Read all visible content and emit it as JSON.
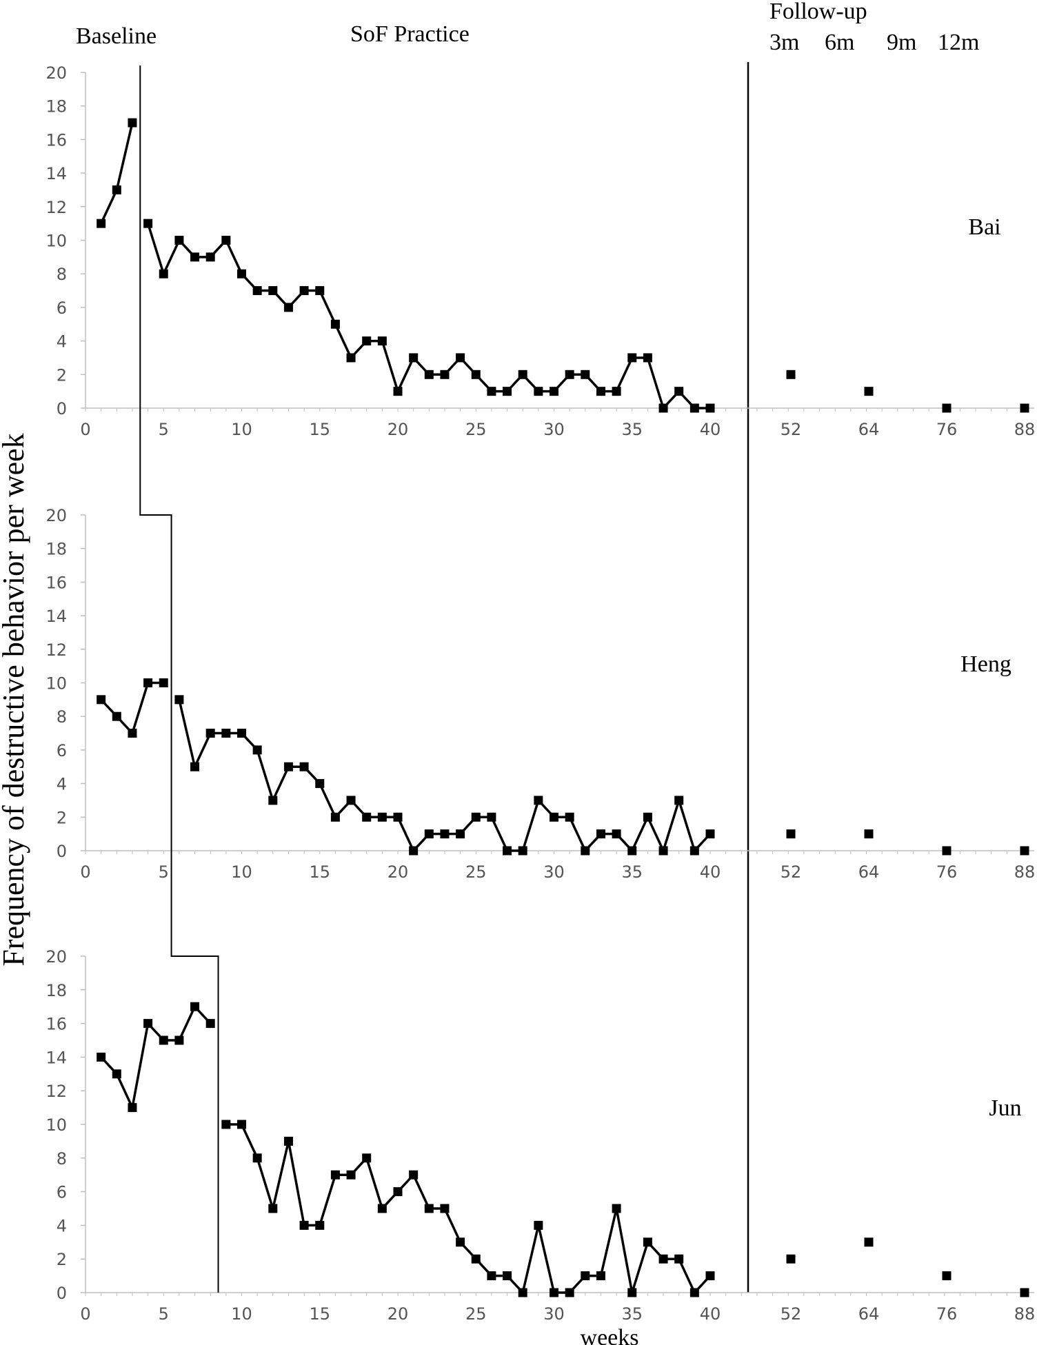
{
  "chart_data": {
    "type": "line",
    "ylabel": "Frequency of destructive behavior per week",
    "xlabel": "weeks",
    "phases": {
      "baseline": "Baseline",
      "intervention": "SoF Practice",
      "followup": "Follow-up"
    },
    "followup_labels": [
      "3m",
      "6m",
      "9m",
      "12m"
    ],
    "ylim": [
      0,
      20
    ],
    "yticks": [
      "0",
      "2",
      "4",
      "6",
      "8",
      "10",
      "12",
      "14",
      "16",
      "18",
      "20"
    ],
    "xticks": [
      "0",
      "5",
      "10",
      "15",
      "20",
      "25",
      "30",
      "35",
      "40"
    ],
    "followup_ticks": [
      "52",
      "64",
      "76",
      "88"
    ],
    "colors": {
      "line": "#000000",
      "marker": "#000000",
      "axis": "#bfbfbf"
    },
    "panels": [
      {
        "name": "Bai",
        "baseline_end_week": 3,
        "x": [
          1,
          2,
          3,
          4,
          5,
          6,
          7,
          8,
          9,
          10,
          11,
          12,
          13,
          14,
          15,
          16,
          17,
          18,
          19,
          20,
          21,
          22,
          23,
          24,
          25,
          26,
          27,
          28,
          29,
          30,
          31,
          32,
          33,
          34,
          35,
          36,
          37,
          38,
          39,
          40
        ],
        "values": [
          11,
          13,
          17,
          11,
          8,
          10,
          9,
          9,
          10,
          8,
          7,
          7,
          6,
          7,
          7,
          5,
          3,
          4,
          4,
          1,
          3,
          2,
          2,
          3,
          2,
          1,
          1,
          2,
          1,
          1,
          2,
          2,
          1,
          1,
          3,
          3,
          0,
          1,
          0,
          0
        ],
        "followup_x": [
          52,
          64,
          76,
          88
        ],
        "followup_values": [
          2,
          1,
          0,
          0
        ]
      },
      {
        "name": "Heng",
        "baseline_end_week": 5,
        "x": [
          1,
          2,
          3,
          4,
          5,
          6,
          7,
          8,
          9,
          10,
          11,
          12,
          13,
          14,
          15,
          16,
          17,
          18,
          19,
          20,
          21,
          22,
          23,
          24,
          25,
          26,
          27,
          28,
          29,
          30,
          31,
          32,
          33,
          34,
          35,
          36,
          37,
          38,
          39,
          40
        ],
        "values": [
          9,
          8,
          7,
          10,
          10,
          9,
          5,
          7,
          7,
          7,
          6,
          3,
          5,
          5,
          4,
          2,
          3,
          2,
          2,
          2,
          0,
          1,
          1,
          1,
          2,
          2,
          0,
          0,
          3,
          2,
          2,
          0,
          1,
          1,
          0,
          2,
          0,
          3,
          0,
          1
        ],
        "followup_x": [
          52,
          64,
          76,
          88
        ],
        "followup_values": [
          1,
          1,
          0,
          0
        ]
      },
      {
        "name": "Jun",
        "baseline_end_week": 8,
        "x": [
          1,
          2,
          3,
          4,
          5,
          6,
          7,
          8,
          9,
          10,
          11,
          12,
          13,
          14,
          15,
          16,
          17,
          18,
          19,
          20,
          21,
          22,
          23,
          24,
          25,
          26,
          27,
          28,
          29,
          30,
          31,
          32,
          33,
          34,
          35,
          36,
          37,
          38,
          39,
          40
        ],
        "values": [
          14,
          13,
          11,
          16,
          15,
          15,
          17,
          16,
          10,
          10,
          8,
          5,
          9,
          4,
          4,
          7,
          7,
          8,
          5,
          6,
          7,
          5,
          5,
          3,
          2,
          1,
          1,
          0,
          4,
          0,
          0,
          1,
          1,
          5,
          0,
          3,
          2,
          2,
          0,
          1
        ],
        "followup_x": [
          52,
          64,
          76,
          88
        ],
        "followup_values": [
          2,
          3,
          1,
          0
        ]
      }
    ]
  }
}
